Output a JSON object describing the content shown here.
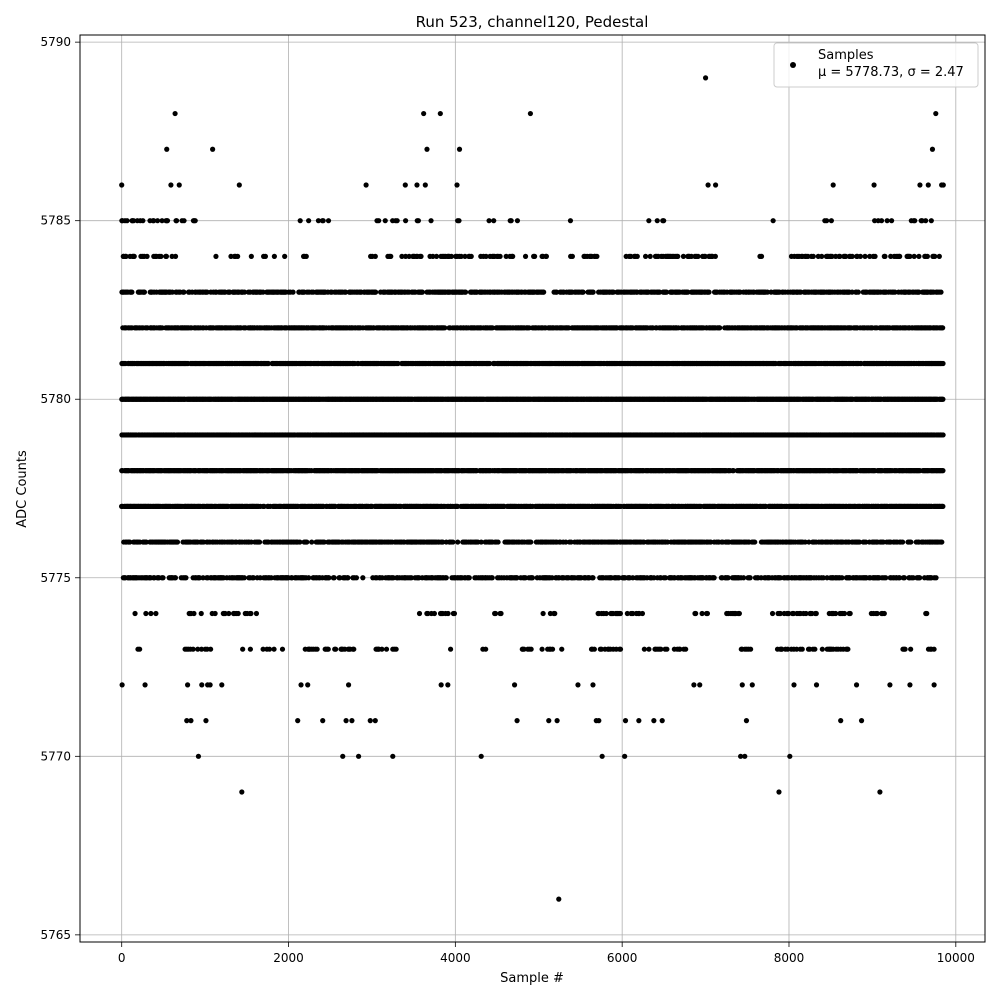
{
  "chart_data": {
    "type": "scatter",
    "title": "Run 523, channel120, Pedestal",
    "xlabel": "Sample #",
    "ylabel": "ADC Counts",
    "xlim": [
      -500,
      10350
    ],
    "ylim": [
      5764.8,
      5790.2
    ],
    "xticks": [
      0,
      2000,
      4000,
      6000,
      8000,
      10000
    ],
    "yticks": [
      5765,
      5770,
      5775,
      5780,
      5785,
      5790
    ],
    "grid": true,
    "legend": {
      "placement": "top-right",
      "entries": [
        {
          "label": "Samples",
          "stats": "μ = 5778.73, σ = 2.47"
        }
      ]
    },
    "marker_color": "#000000",
    "series": [
      {
        "name": "Samples",
        "points": [
          [
            0,
            5786
          ],
          [
            5,
            5772
          ],
          [
            10,
            5785
          ],
          [
            25,
            5784
          ],
          [
            40,
            5785
          ],
          [
            160,
            5774
          ],
          [
            195,
            5773
          ],
          [
            215,
            5773
          ],
          [
            280,
            5772
          ],
          [
            290,
            5774
          ],
          [
            350,
            5774
          ],
          [
            410,
            5774
          ],
          [
            430,
            5785
          ],
          [
            540,
            5787
          ],
          [
            590,
            5786
          ],
          [
            640,
            5788
          ],
          [
            690,
            5786
          ],
          [
            760,
            5773
          ],
          [
            780,
            5771
          ],
          [
            790,
            5772
          ],
          [
            830,
            5771
          ],
          [
            870,
            5785
          ],
          [
            920,
            5770
          ],
          [
            960,
            5772
          ],
          [
            1010,
            5771
          ],
          [
            1030,
            5772
          ],
          [
            1060,
            5772
          ],
          [
            1090,
            5787
          ],
          [
            1130,
            5784
          ],
          [
            1200,
            5772
          ],
          [
            1410,
            5786
          ],
          [
            1440,
            5769
          ],
          [
            2110,
            5771
          ],
          [
            2140,
            5785
          ],
          [
            2150,
            5772
          ],
          [
            2230,
            5772
          ],
          [
            2410,
            5771
          ],
          [
            2650,
            5770
          ],
          [
            2690,
            5771
          ],
          [
            2720,
            5772
          ],
          [
            2760,
            5771
          ],
          [
            2840,
            5770
          ],
          [
            2930,
            5786
          ],
          [
            2980,
            5771
          ],
          [
            3040,
            5771
          ],
          [
            3250,
            5770
          ],
          [
            3400,
            5786
          ],
          [
            3480,
            5776
          ],
          [
            3540,
            5786
          ],
          [
            3620,
            5788
          ],
          [
            3640,
            5786
          ],
          [
            3660,
            5787
          ],
          [
            3820,
            5788
          ],
          [
            3830,
            5772
          ],
          [
            3910,
            5772
          ],
          [
            4020,
            5786
          ],
          [
            4050,
            5787
          ],
          [
            4310,
            5770
          ],
          [
            4460,
            5785
          ],
          [
            4710,
            5772
          ],
          [
            4740,
            5771
          ],
          [
            4900,
            5788
          ],
          [
            5120,
            5771
          ],
          [
            5220,
            5771
          ],
          [
            5240,
            5766
          ],
          [
            5380,
            5785
          ],
          [
            5470,
            5772
          ],
          [
            5650,
            5772
          ],
          [
            5690,
            5771
          ],
          [
            5720,
            5771
          ],
          [
            5760,
            5770
          ],
          [
            6030,
            5770
          ],
          [
            6040,
            5771
          ],
          [
            6200,
            5771
          ],
          [
            6320,
            5785
          ],
          [
            6380,
            5771
          ],
          [
            6480,
            5771
          ],
          [
            6860,
            5772
          ],
          [
            6930,
            5772
          ],
          [
            7000,
            5789
          ],
          [
            7030,
            5786
          ],
          [
            7120,
            5786
          ],
          [
            7420,
            5770
          ],
          [
            7440,
            5772
          ],
          [
            7470,
            5770
          ],
          [
            7490,
            5771
          ],
          [
            7560,
            5772
          ],
          [
            7810,
            5785
          ],
          [
            7880,
            5769
          ],
          [
            8010,
            5770
          ],
          [
            8060,
            5772
          ],
          [
            8330,
            5772
          ],
          [
            8530,
            5786
          ],
          [
            8620,
            5771
          ],
          [
            8810,
            5772
          ],
          [
            8870,
            5771
          ],
          [
            9020,
            5786
          ],
          [
            9090,
            5769
          ],
          [
            9210,
            5772
          ],
          [
            9450,
            5772
          ],
          [
            9570,
            5786
          ],
          [
            9670,
            5786
          ],
          [
            9720,
            5787
          ],
          [
            9740,
            5772
          ],
          [
            9760,
            5788
          ],
          [
            9830,
            5786
          ],
          [
            9850,
            5786
          ]
        ]
      }
    ],
    "band_rows": [
      {
        "y": 5785,
        "ranges": [
          [
            0,
            900
          ],
          [
            2140,
            2520
          ],
          [
            2930,
            3860
          ],
          [
            4030,
            4950
          ],
          [
            6330,
            6580
          ],
          [
            7810,
            7820
          ],
          [
            8320,
            9840
          ]
        ],
        "density": 0.14
      },
      {
        "y": 5784,
        "ranges": [
          [
            20,
            740
          ],
          [
            1110,
            1130
          ],
          [
            1310,
            1420
          ],
          [
            1530,
            1570
          ],
          [
            1690,
            1960
          ],
          [
            2180,
            2220
          ],
          [
            2950,
            4730
          ],
          [
            4830,
            5100
          ],
          [
            5380,
            5700
          ],
          [
            6050,
            7140
          ],
          [
            7650,
            7700
          ],
          [
            8030,
            9850
          ]
        ],
        "density": 0.35
      },
      {
        "y": 5783,
        "ranges": [
          [
            0,
            9850
          ]
        ],
        "density": 0.62
      },
      {
        "y": 5782,
        "ranges": [
          [
            0,
            9850
          ]
        ],
        "density": 0.78
      },
      {
        "y": 5781,
        "ranges": [
          [
            0,
            9850
          ]
        ],
        "density": 0.9
      },
      {
        "y": 5780,
        "ranges": [
          [
            0,
            9850
          ]
        ],
        "density": 0.98
      },
      {
        "y": 5779,
        "ranges": [
          [
            0,
            9850
          ]
        ],
        "density": 0.98
      },
      {
        "y": 5778,
        "ranges": [
          [
            0,
            9850
          ]
        ],
        "density": 0.9
      },
      {
        "y": 5777,
        "ranges": [
          [
            0,
            9850
          ]
        ],
        "density": 0.84
      },
      {
        "y": 5776,
        "ranges": [
          [
            0,
            9850
          ]
        ],
        "density": 0.66
      },
      {
        "y": 5775,
        "ranges": [
          [
            20,
            9780
          ]
        ],
        "density": 0.55
      },
      {
        "y": 5774,
        "ranges": [
          [
            800,
            1620
          ],
          [
            3550,
            3990
          ],
          [
            4470,
            4600
          ],
          [
            5050,
            5200
          ],
          [
            5580,
            6240
          ],
          [
            6870,
            7030
          ],
          [
            7240,
            7420
          ],
          [
            7800,
            8330
          ],
          [
            8470,
            8830
          ],
          [
            8990,
            9150
          ],
          [
            9620,
            9680
          ]
        ],
        "density": 0.3
      },
      {
        "y": 5773,
        "ranges": [
          [
            780,
            1080
          ],
          [
            1420,
            2000
          ],
          [
            2200,
            2880
          ],
          [
            3040,
            3300
          ],
          [
            3900,
            3960
          ],
          [
            4320,
            4400
          ],
          [
            4800,
            5300
          ],
          [
            5620,
            6020
          ],
          [
            6220,
            6770
          ],
          [
            6990,
            7010
          ],
          [
            7330,
            7580
          ],
          [
            7850,
            8830
          ],
          [
            9280,
            9460
          ],
          [
            9640,
            9750
          ]
        ],
        "density": 0.3
      }
    ]
  }
}
